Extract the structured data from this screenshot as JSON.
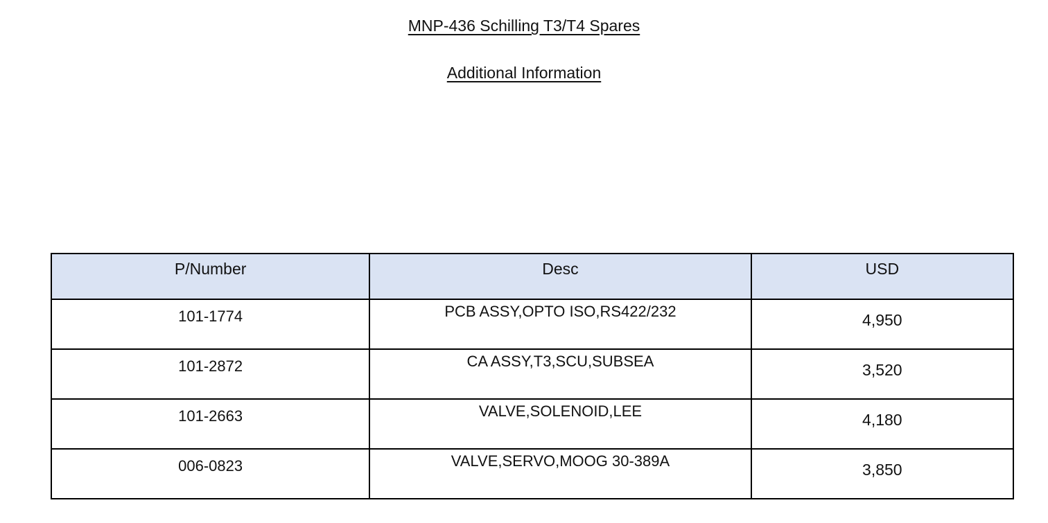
{
  "document": {
    "title": "MNP-436 Schilling T3/T4 Spares",
    "subtitle": "Additional Information"
  },
  "table": {
    "headers": [
      "P/Number",
      "Desc",
      "USD"
    ],
    "header_bg": "#dae3f3",
    "rows": [
      {
        "part": "101-1774",
        "desc": "PCB ASSY,OPTO ISO,RS422/232",
        "usd": "4,950"
      },
      {
        "part": "101-2872",
        "desc": "CA ASSY,T3,SCU,SUBSEA",
        "usd": "3,520"
      },
      {
        "part": "101-2663",
        "desc": "VALVE,SOLENOID,LEE",
        "usd": "4,180"
      },
      {
        "part": "006-0823",
        "desc": "VALVE,SERVO,MOOG 30-389A",
        "usd": "3,850"
      }
    ]
  }
}
